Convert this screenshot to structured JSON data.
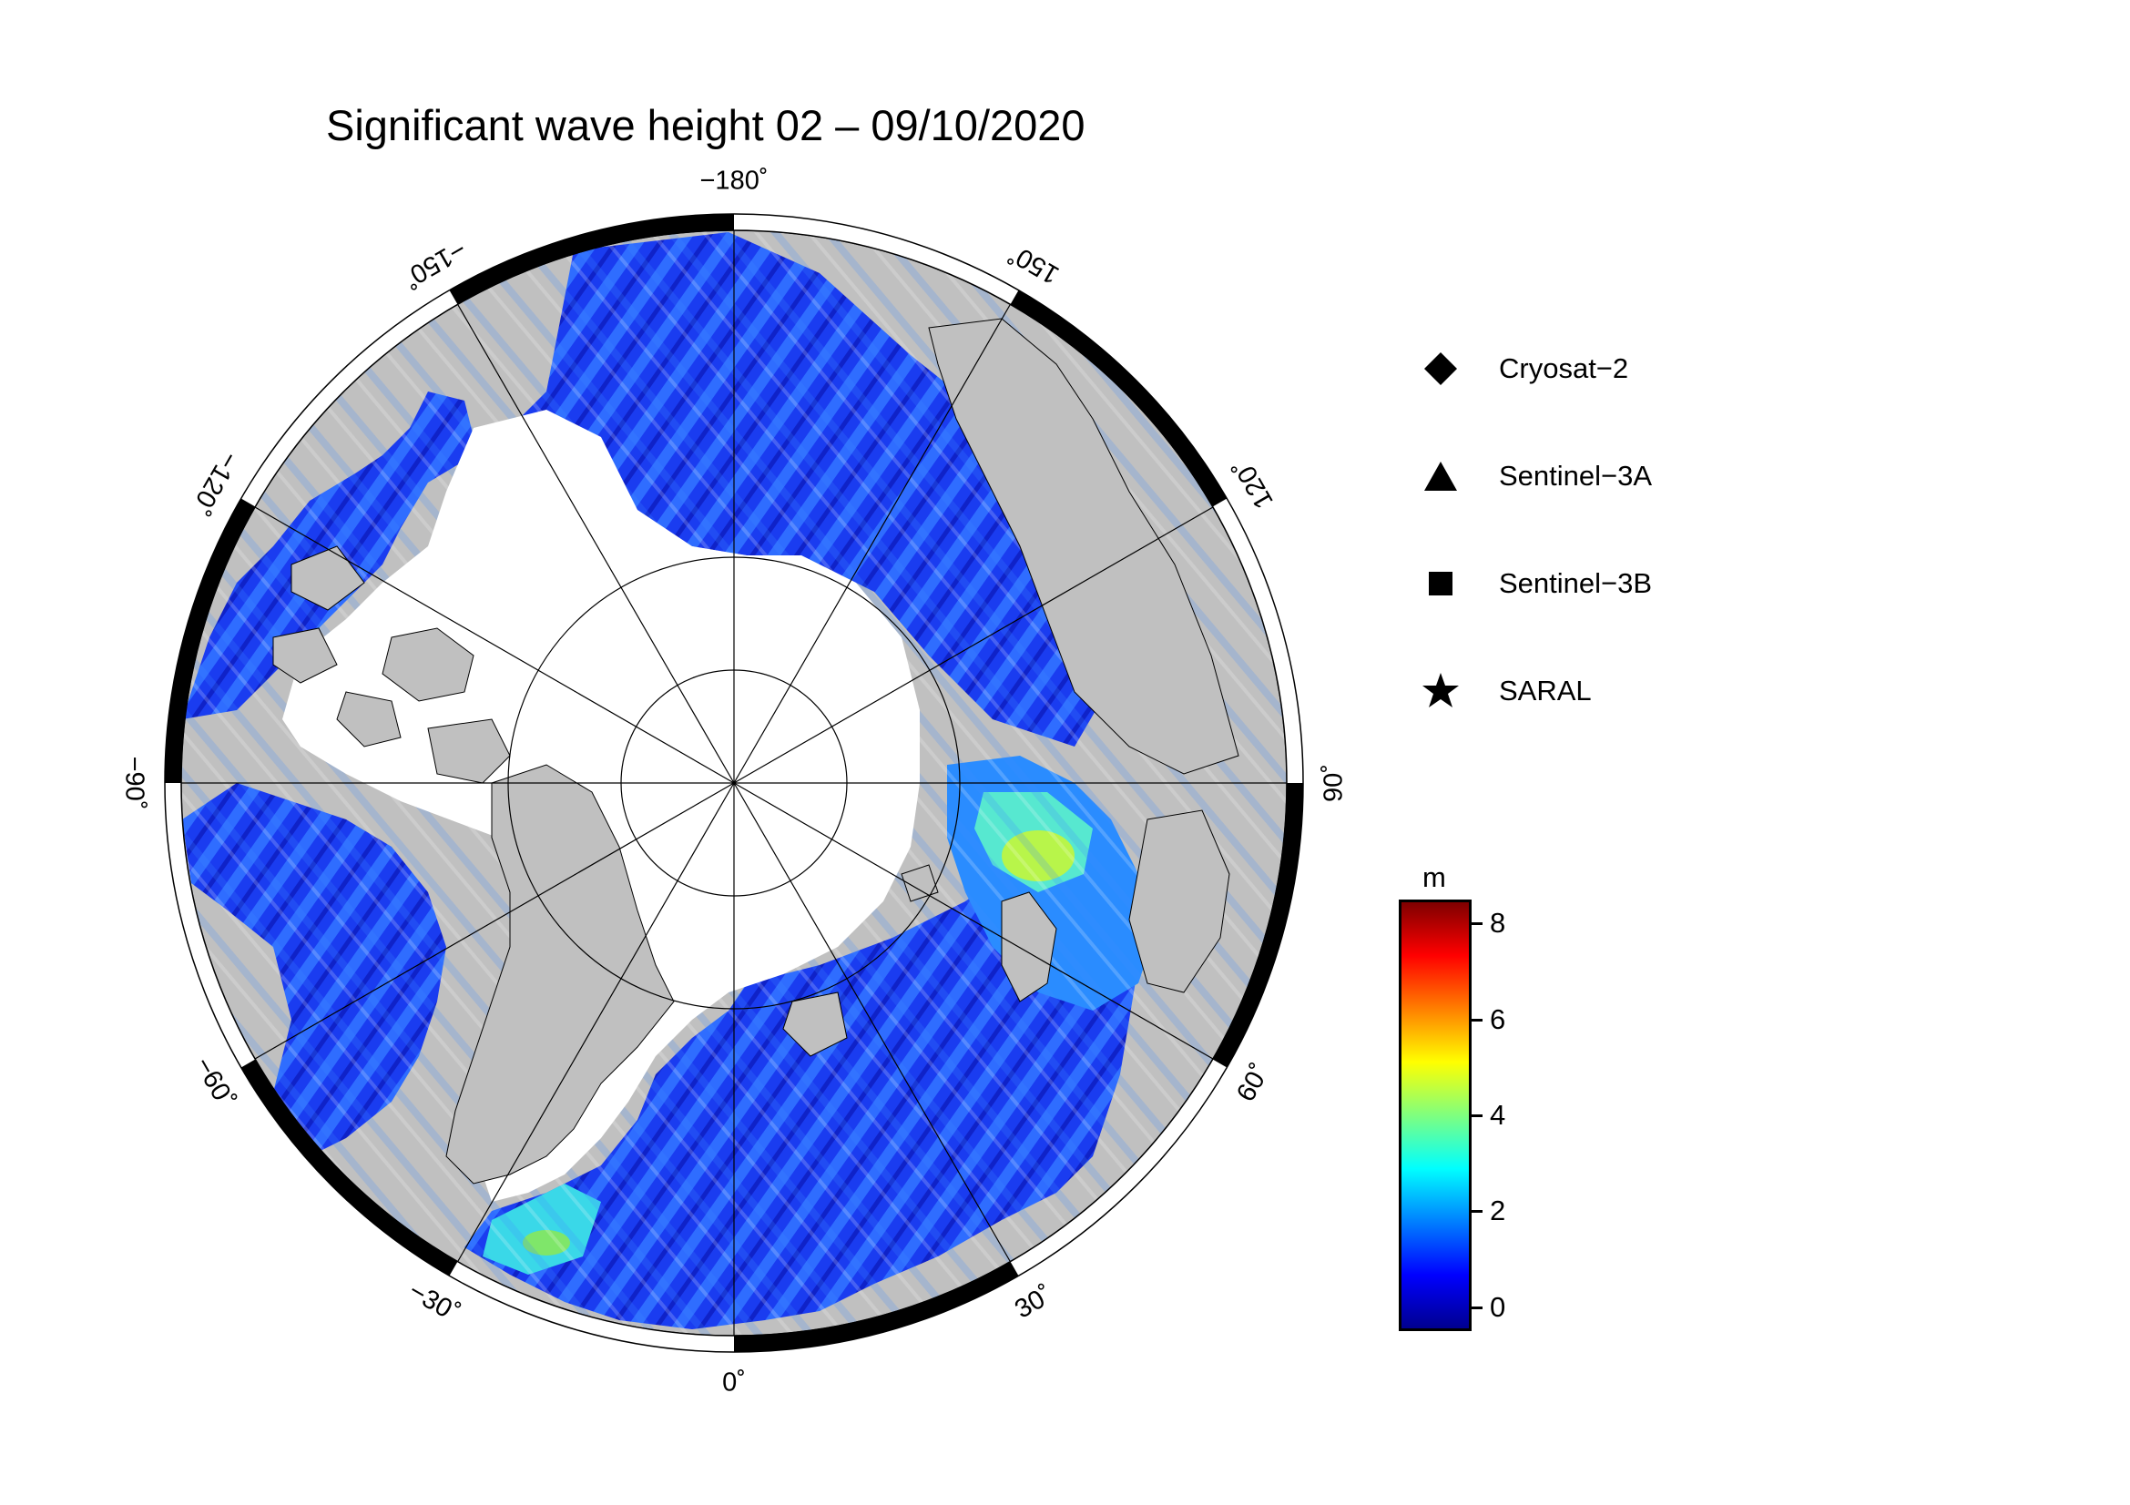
{
  "title": "Significant wave height 02 – 09/10/2020",
  "map": {
    "projection": "north polar stereographic",
    "land_color": "#c0c0c0",
    "ice_color": "#ffffff",
    "graticule_color": "#000000",
    "longitude_labels": [
      {
        "lon": 180,
        "text": "−180˚"
      },
      {
        "lon": 150,
        "text": "150˚"
      },
      {
        "lon": 120,
        "text": "120˚"
      },
      {
        "lon": 90,
        "text": "90˚"
      },
      {
        "lon": 60,
        "text": "60˚"
      },
      {
        "lon": 30,
        "text": "30˚"
      },
      {
        "lon": 0,
        "text": "0˚"
      },
      {
        "lon": -30,
        "text": "−30˚"
      },
      {
        "lon": -60,
        "text": "−60˚"
      },
      {
        "lon": -90,
        "text": "−90˚"
      },
      {
        "lon": -120,
        "text": "−120˚"
      },
      {
        "lon": -150,
        "text": "−150˚"
      }
    ]
  },
  "legend": {
    "items": [
      {
        "marker": "diamond",
        "label": "Cryosat−2"
      },
      {
        "marker": "triangle",
        "label": "Sentinel−3A"
      },
      {
        "marker": "square",
        "label": "Sentinel−3B"
      },
      {
        "marker": "star",
        "label": "SARAL"
      }
    ]
  },
  "colorbar": {
    "unit": "m",
    "min": -0.5,
    "max": 8.5,
    "ticks": [
      {
        "value": 0,
        "label": "0"
      },
      {
        "value": 2,
        "label": "2"
      },
      {
        "value": 4,
        "label": "4"
      },
      {
        "value": 6,
        "label": "6"
      },
      {
        "value": 8,
        "label": "8"
      }
    ],
    "colors": [
      "#00008f",
      "#0000ff",
      "#007fff",
      "#00ffff",
      "#7fff7f",
      "#ffff00",
      "#ff7f00",
      "#ff0000",
      "#7f0000"
    ]
  }
}
